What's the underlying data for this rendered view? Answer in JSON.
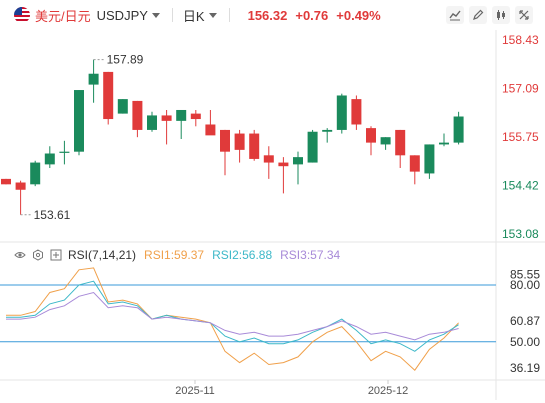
{
  "header": {
    "pair_cn": "美元/日元",
    "pair_en": "USDJPY",
    "period": "日K",
    "price": "156.32",
    "change": "+0.76",
    "change_pct": "+0.49%"
  },
  "rsi_legend": {
    "title": "RSI(7,14,21)",
    "rsi1": "RSI1:59.37",
    "rsi2": "RSI2:56.88",
    "rsi3": "RSI3:57.34"
  },
  "colors": {
    "up": "#1a8a5c",
    "down": "#e03a3a",
    "rsi1": "#f0a04a",
    "rsi2": "#3cb8c8",
    "rsi3": "#a88ad8",
    "level": "#3a9ad9"
  },
  "chart_data": [
    {
      "type": "candlestick",
      "title": "",
      "y_ticks": [
        "158.43",
        "157.09",
        "155.75",
        "154.42",
        "153.08"
      ],
      "ylim": [
        153.08,
        158.43
      ],
      "x_ticks": [
        "2025-11",
        "2025-12"
      ],
      "annotations": {
        "high": "157.89",
        "low": "153.61"
      },
      "candles": [
        {
          "o": 154.6,
          "h": 154.6,
          "l": 154.45,
          "c": 154.45
        },
        {
          "o": 154.5,
          "h": 154.55,
          "l": 153.61,
          "c": 154.3
        },
        {
          "o": 154.45,
          "h": 155.1,
          "l": 154.4,
          "c": 155.05
        },
        {
          "o": 155.0,
          "h": 155.5,
          "l": 154.9,
          "c": 155.3
        },
        {
          "o": 155.35,
          "h": 155.65,
          "l": 155.0,
          "c": 155.35
        },
        {
          "o": 155.35,
          "h": 157.05,
          "l": 155.25,
          "c": 157.05
        },
        {
          "o": 157.2,
          "h": 157.89,
          "l": 156.7,
          "c": 157.5
        },
        {
          "o": 157.55,
          "h": 157.55,
          "l": 156.1,
          "c": 156.25
        },
        {
          "o": 156.4,
          "h": 156.8,
          "l": 156.4,
          "c": 156.8
        },
        {
          "o": 156.75,
          "h": 156.75,
          "l": 155.75,
          "c": 155.95
        },
        {
          "o": 155.95,
          "h": 156.45,
          "l": 155.9,
          "c": 156.35
        },
        {
          "o": 156.35,
          "h": 156.5,
          "l": 155.55,
          "c": 156.2
        },
        {
          "o": 156.2,
          "h": 156.5,
          "l": 155.7,
          "c": 156.5
        },
        {
          "o": 156.4,
          "h": 156.5,
          "l": 156.05,
          "c": 156.25
        },
        {
          "o": 156.1,
          "h": 156.5,
          "l": 155.85,
          "c": 155.8
        },
        {
          "o": 155.95,
          "h": 155.95,
          "l": 154.7,
          "c": 155.35
        },
        {
          "o": 155.85,
          "h": 155.95,
          "l": 155.05,
          "c": 155.4
        },
        {
          "o": 155.85,
          "h": 155.95,
          "l": 155.1,
          "c": 155.15
        },
        {
          "o": 155.25,
          "h": 155.5,
          "l": 154.6,
          "c": 155.05
        },
        {
          "o": 155.05,
          "h": 155.2,
          "l": 154.2,
          "c": 154.95
        },
        {
          "o": 155.0,
          "h": 155.35,
          "l": 154.45,
          "c": 155.2
        },
        {
          "o": 155.05,
          "h": 155.95,
          "l": 155.05,
          "c": 155.9
        },
        {
          "o": 155.9,
          "h": 156.0,
          "l": 155.6,
          "c": 155.95
        },
        {
          "o": 155.95,
          "h": 156.95,
          "l": 155.85,
          "c": 156.9
        },
        {
          "o": 156.8,
          "h": 156.9,
          "l": 155.95,
          "c": 156.1
        },
        {
          "o": 156.0,
          "h": 156.05,
          "l": 155.25,
          "c": 155.6
        },
        {
          "o": 155.55,
          "h": 155.75,
          "l": 155.4,
          "c": 155.75
        },
        {
          "o": 155.95,
          "h": 155.95,
          "l": 154.9,
          "c": 155.25
        },
        {
          "o": 155.25,
          "h": 155.25,
          "l": 154.45,
          "c": 154.8
        },
        {
          "o": 154.75,
          "h": 155.55,
          "l": 154.6,
          "c": 155.55
        },
        {
          "o": 155.55,
          "h": 155.85,
          "l": 155.5,
          "c": 155.6
        },
        {
          "o": 155.6,
          "h": 156.45,
          "l": 155.55,
          "c": 156.32
        }
      ]
    },
    {
      "type": "line",
      "title": "",
      "y_ticks": [
        "85.55",
        "80.00",
        "60.87",
        "50.00",
        "36.19"
      ],
      "ylim": [
        33,
        90
      ],
      "levels": [
        80,
        50
      ],
      "series": [
        {
          "name": "RSI1",
          "values": [
            64,
            64,
            66,
            76,
            78,
            88,
            89,
            71,
            72,
            70,
            62,
            64,
            63,
            62,
            60,
            45,
            39,
            44,
            38,
            39,
            42,
            50,
            55,
            58,
            50,
            40,
            45,
            42,
            35,
            46,
            52,
            60
          ]
        },
        {
          "name": "RSI2",
          "values": [
            63,
            63,
            64,
            70,
            72,
            80,
            82,
            70,
            71,
            69,
            62,
            64,
            62,
            61,
            60,
            53,
            50,
            52,
            49,
            49,
            51,
            55,
            58,
            62,
            56,
            49,
            51,
            49,
            45,
            51,
            54,
            59
          ]
        },
        {
          "name": "RSI3",
          "values": [
            62,
            62,
            63,
            67,
            69,
            74,
            76,
            68,
            69,
            68,
            62,
            63,
            62,
            61,
            60,
            56,
            54,
            55,
            53,
            53,
            54,
            56,
            58,
            61,
            58,
            54,
            55,
            53,
            51,
            54,
            55,
            57
          ]
        }
      ]
    }
  ]
}
